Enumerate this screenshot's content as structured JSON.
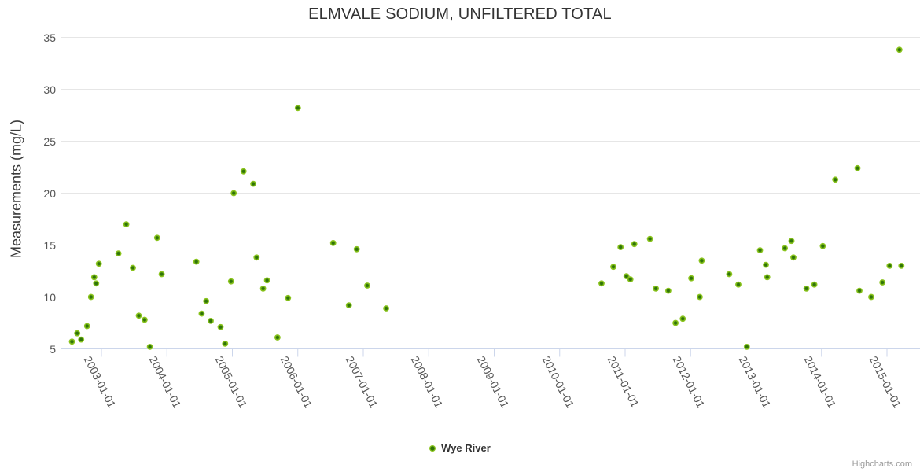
{
  "chart": {
    "title": "ELMVALE SODIUM, UNFILTERED TOTAL",
    "credits_label": "Highcharts.com"
  },
  "legend": {
    "items": [
      {
        "label": "Wye River",
        "marker": "green-dot"
      }
    ]
  },
  "colors": {
    "marker_rim": "#8ac41d",
    "marker_core": "#2f7408",
    "grid_line": "#e6e6e6",
    "axis_line": "#ccd6eb",
    "title_text": "#333333",
    "axis_text": "#555555",
    "credits_text": "#999999",
    "background": "#ffffff"
  },
  "chart_data": {
    "type": "scatter",
    "title": "ELMVALE SODIUM, UNFILTERED TOTAL",
    "xlabel": "",
    "ylabel": "Measurements (mg/L)",
    "ylim": [
      5,
      35
    ],
    "yticks": [
      5,
      10,
      15,
      20,
      25,
      30,
      35
    ],
    "xlim_years": [
      2002.39,
      2015.5
    ],
    "xticks": [
      {
        "year": 2003,
        "label": "2003-01-01"
      },
      {
        "year": 2004,
        "label": "2004-01-01"
      },
      {
        "year": 2005,
        "label": "2005-01-01"
      },
      {
        "year": 2006,
        "label": "2006-01-01"
      },
      {
        "year": 2007,
        "label": "2007-01-01"
      },
      {
        "year": 2008,
        "label": "2008-01-01"
      },
      {
        "year": 2009,
        "label": "2009-01-01"
      },
      {
        "year": 2010,
        "label": "2010-01-01"
      },
      {
        "year": 2011,
        "label": "2011-01-01"
      },
      {
        "year": 2012,
        "label": "2012-01-01"
      },
      {
        "year": 2013,
        "label": "2013-01-01"
      },
      {
        "year": 2014,
        "label": "2014-01-01"
      },
      {
        "year": 2015,
        "label": "2015-01-01"
      }
    ],
    "grid": "horizontal-only",
    "legend_position": "bottom-center",
    "series": [
      {
        "name": "Wye River",
        "color": "#8ac41d",
        "points": [
          {
            "date": "2002-07",
            "x": 2002.55,
            "y": 5.7
          },
          {
            "date": "2002-08",
            "x": 2002.63,
            "y": 6.5
          },
          {
            "date": "2002-09",
            "x": 2002.69,
            "y": 5.9
          },
          {
            "date": "2002-10",
            "x": 2002.78,
            "y": 7.2
          },
          {
            "date": "2002-11",
            "x": 2002.84,
            "y": 10.0
          },
          {
            "date": "2002-11",
            "x": 2002.89,
            "y": 11.9
          },
          {
            "date": "2002-12",
            "x": 2002.92,
            "y": 11.3
          },
          {
            "date": "2002-12",
            "x": 2002.96,
            "y": 13.2
          },
          {
            "date": "2003-04",
            "x": 2003.26,
            "y": 14.2
          },
          {
            "date": "2003-05",
            "x": 2003.38,
            "y": 17.0
          },
          {
            "date": "2003-06",
            "x": 2003.48,
            "y": 12.8
          },
          {
            "date": "2003-07",
            "x": 2003.57,
            "y": 8.2
          },
          {
            "date": "2003-08",
            "x": 2003.66,
            "y": 7.8
          },
          {
            "date": "2003-09",
            "x": 2003.74,
            "y": 5.2
          },
          {
            "date": "2003-11",
            "x": 2003.85,
            "y": 15.7
          },
          {
            "date": "2003-12",
            "x": 2003.92,
            "y": 12.2
          },
          {
            "date": "2004-06",
            "x": 2004.45,
            "y": 13.4
          },
          {
            "date": "2004-07",
            "x": 2004.53,
            "y": 8.4
          },
          {
            "date": "2004-08",
            "x": 2004.6,
            "y": 9.6
          },
          {
            "date": "2004-09",
            "x": 2004.67,
            "y": 7.7
          },
          {
            "date": "2004-10",
            "x": 2004.82,
            "y": 7.1
          },
          {
            "date": "2004-11",
            "x": 2004.89,
            "y": 5.5
          },
          {
            "date": "2004-12",
            "x": 2004.98,
            "y": 11.5
          },
          {
            "date": "2005-01",
            "x": 2005.02,
            "y": 20.0
          },
          {
            "date": "2005-03",
            "x": 2005.17,
            "y": 22.1
          },
          {
            "date": "2005-04",
            "x": 2005.32,
            "y": 20.9
          },
          {
            "date": "2005-05",
            "x": 2005.37,
            "y": 13.8
          },
          {
            "date": "2005-06",
            "x": 2005.47,
            "y": 10.8
          },
          {
            "date": "2005-07",
            "x": 2005.53,
            "y": 11.6
          },
          {
            "date": "2005-09",
            "x": 2005.69,
            "y": 6.1
          },
          {
            "date": "2005-11",
            "x": 2005.85,
            "y": 9.9
          },
          {
            "date": "2006-01",
            "x": 2006.0,
            "y": 28.2
          },
          {
            "date": "2006-07",
            "x": 2006.54,
            "y": 15.2
          },
          {
            "date": "2006-10",
            "x": 2006.78,
            "y": 9.2
          },
          {
            "date": "2006-11",
            "x": 2006.9,
            "y": 14.6
          },
          {
            "date": "2007-01",
            "x": 2007.06,
            "y": 11.1
          },
          {
            "date": "2007-05",
            "x": 2007.35,
            "y": 8.9
          },
          {
            "date": "2010-08",
            "x": 2010.64,
            "y": 11.3
          },
          {
            "date": "2010-10",
            "x": 2010.82,
            "y": 12.9
          },
          {
            "date": "2010-12",
            "x": 2010.93,
            "y": 14.8
          },
          {
            "date": "2011-01",
            "x": 2011.02,
            "y": 12.0
          },
          {
            "date": "2011-02",
            "x": 2011.08,
            "y": 11.7
          },
          {
            "date": "2011-02",
            "x": 2011.14,
            "y": 15.1
          },
          {
            "date": "2011-05",
            "x": 2011.38,
            "y": 15.6
          },
          {
            "date": "2011-06",
            "x": 2011.47,
            "y": 10.8
          },
          {
            "date": "2011-08",
            "x": 2011.66,
            "y": 10.6
          },
          {
            "date": "2011-10",
            "x": 2011.77,
            "y": 7.5
          },
          {
            "date": "2011-11",
            "x": 2011.88,
            "y": 7.9
          },
          {
            "date": "2012-01",
            "x": 2012.01,
            "y": 11.8
          },
          {
            "date": "2012-02",
            "x": 2012.14,
            "y": 10.0
          },
          {
            "date": "2012-03",
            "x": 2012.17,
            "y": 13.5
          },
          {
            "date": "2012-08",
            "x": 2012.59,
            "y": 12.2
          },
          {
            "date": "2012-09",
            "x": 2012.73,
            "y": 11.2
          },
          {
            "date": "2012-11",
            "x": 2012.86,
            "y": 5.2
          },
          {
            "date": "2013-01",
            "x": 2013.06,
            "y": 14.5
          },
          {
            "date": "2013-02",
            "x": 2013.15,
            "y": 13.1
          },
          {
            "date": "2013-03",
            "x": 2013.17,
            "y": 11.9
          },
          {
            "date": "2013-06",
            "x": 2013.44,
            "y": 14.7
          },
          {
            "date": "2013-07",
            "x": 2013.54,
            "y": 15.4
          },
          {
            "date": "2013-07",
            "x": 2013.57,
            "y": 13.8
          },
          {
            "date": "2013-10",
            "x": 2013.77,
            "y": 10.8
          },
          {
            "date": "2013-11",
            "x": 2013.89,
            "y": 11.2
          },
          {
            "date": "2014-01",
            "x": 2014.02,
            "y": 14.9
          },
          {
            "date": "2014-03",
            "x": 2014.21,
            "y": 21.3
          },
          {
            "date": "2014-07",
            "x": 2014.55,
            "y": 22.4
          },
          {
            "date": "2014-08",
            "x": 2014.58,
            "y": 10.6
          },
          {
            "date": "2014-10",
            "x": 2014.76,
            "y": 10.0
          },
          {
            "date": "2014-12",
            "x": 2014.93,
            "y": 11.4
          },
          {
            "date": "2015-01",
            "x": 2015.04,
            "y": 13.0
          },
          {
            "date": "2015-03",
            "x": 2015.19,
            "y": 33.8
          },
          {
            "date": "2015-03",
            "x": 2015.22,
            "y": 13.0
          }
        ]
      }
    ]
  }
}
